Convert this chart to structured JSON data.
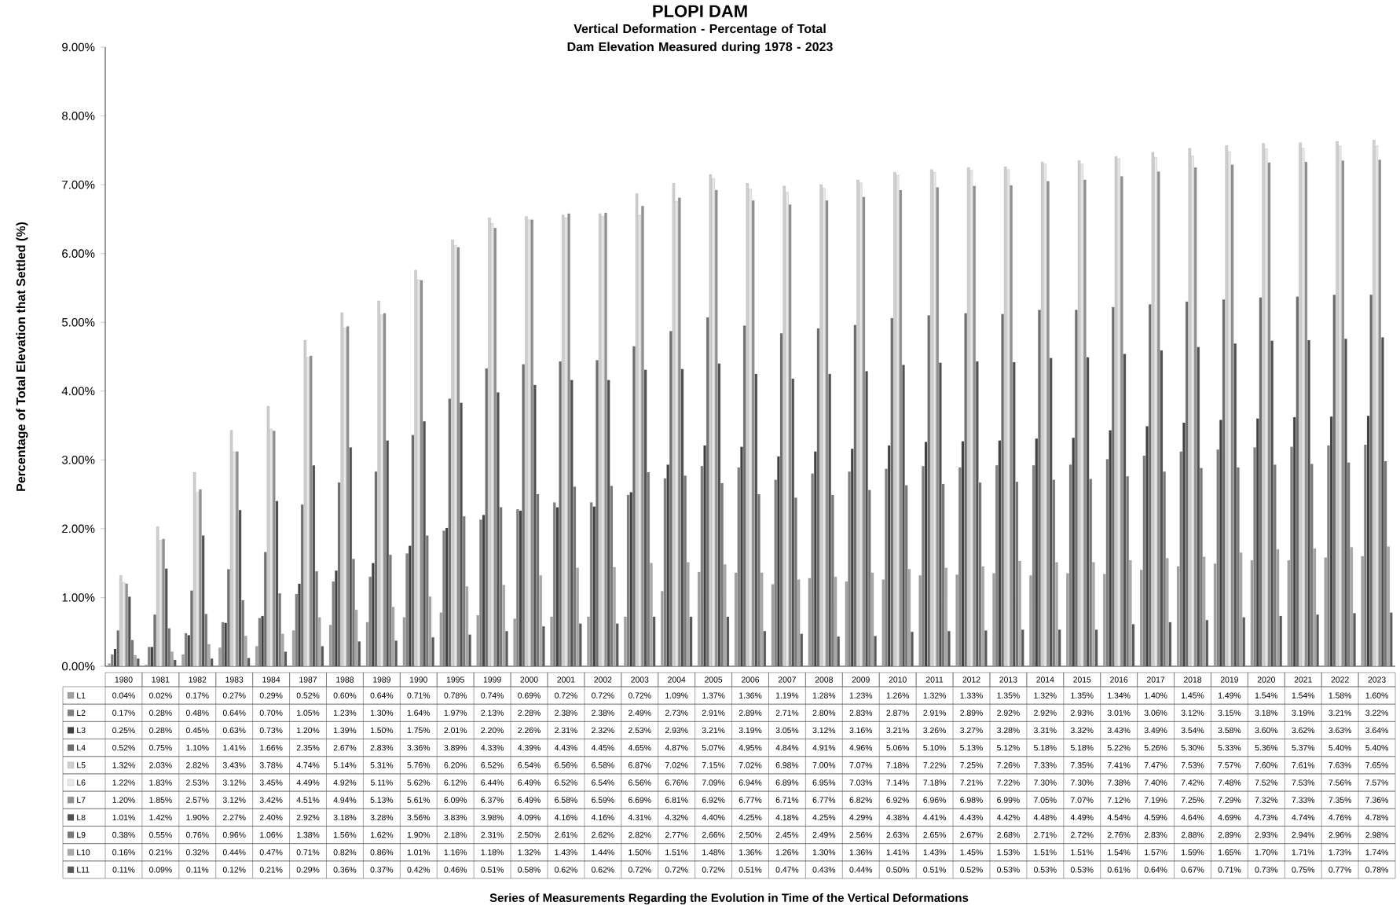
{
  "chart_data": {
    "type": "bar",
    "title": "PLOPI DAM",
    "subtitle": "Vertical Deformation - Percentage of Total Dam Elevation Measured during 1978 - 2023",
    "annotations": [
      "Series of Measurements Regarding the Evolution in Time of the Vertical Deformations"
    ],
    "ylabel": "Percentage of Total Elevation that Settled (%)",
    "categories": [
      "1980",
      "1981",
      "1982",
      "1983",
      "1984",
      "1987",
      "1988",
      "1989",
      "1990",
      "1995",
      "1999",
      "2000",
      "2001",
      "2002",
      "2003",
      "2004",
      "2005",
      "2006",
      "2007",
      "2008",
      "2009",
      "2010",
      "2011",
      "2012",
      "2013",
      "2014",
      "2015",
      "2016",
      "2017",
      "2018",
      "2019",
      "2020",
      "2021",
      "2022",
      "2023"
    ],
    "ylim": [
      0,
      9
    ],
    "yticks": [
      {
        "value": 0,
        "label": "0.00%"
      },
      {
        "value": 1,
        "label": "1.00%"
      },
      {
        "value": 2,
        "label": "2.00%"
      },
      {
        "value": 3,
        "label": "3.00%"
      },
      {
        "value": 4,
        "label": "4.00%"
      },
      {
        "value": 5,
        "label": "5.00%"
      },
      {
        "value": 6,
        "label": "6.00%"
      },
      {
        "value": 7,
        "label": "7.00%"
      },
      {
        "value": 8,
        "label": "8.00%"
      },
      {
        "value": 9,
        "label": "9.00%"
      }
    ],
    "legend": "bottom",
    "series": [
      {
        "name": "L1",
        "color": "#a0a0a0",
        "values": [
          0.04,
          0.02,
          0.17,
          0.27,
          0.29,
          0.52,
          0.6,
          0.64,
          0.71,
          0.78,
          0.74,
          0.69,
          0.72,
          0.72,
          0.72,
          1.09,
          1.37,
          1.36,
          1.19,
          1.28,
          1.23,
          1.26,
          1.32,
          1.33,
          1.35,
          1.32,
          1.35,
          1.34,
          1.4,
          1.45,
          1.49,
          1.54,
          1.54,
          1.58,
          1.6
        ],
        "value_labels": [
          "0.04%",
          "0.02%",
          "0.17%",
          "0.27%",
          "0.29%",
          "0.52%",
          "0.60%",
          "0.64%",
          "0.71%",
          "0.78%",
          "0.74%",
          "0.69%",
          "0.72%",
          "0.72%",
          "0.72%",
          "1.09%",
          "1.37%",
          "1.36%",
          "1.19%",
          "1.28%",
          "1.23%",
          "1.26%",
          "1.32%",
          "1.33%",
          "1.35%",
          "1.32%",
          "1.35%",
          "1.34%",
          "1.40%",
          "1.45%",
          "1.49%",
          "1.54%",
          "1.54%",
          "1.58%",
          "1.60%"
        ]
      },
      {
        "name": "L2",
        "color": "#808080",
        "values": [
          0.17,
          0.28,
          0.48,
          0.64,
          0.7,
          1.05,
          1.23,
          1.3,
          1.64,
          1.97,
          2.13,
          2.28,
          2.38,
          2.38,
          2.49,
          2.73,
          2.91,
          2.89,
          2.71,
          2.8,
          2.83,
          2.87,
          2.91,
          2.89,
          2.92,
          2.92,
          2.93,
          3.01,
          3.06,
          3.12,
          3.15,
          3.18,
          3.19,
          3.21,
          3.22
        ],
        "value_labels": [
          "0.17%",
          "0.28%",
          "0.48%",
          "0.64%",
          "0.70%",
          "1.05%",
          "1.23%",
          "1.30%",
          "1.64%",
          "1.97%",
          "2.13%",
          "2.28%",
          "2.38%",
          "2.38%",
          "2.49%",
          "2.73%",
          "2.91%",
          "2.89%",
          "2.71%",
          "2.80%",
          "2.83%",
          "2.87%",
          "2.91%",
          "2.89%",
          "2.92%",
          "2.92%",
          "2.93%",
          "3.01%",
          "3.06%",
          "3.12%",
          "3.15%",
          "3.18%",
          "3.19%",
          "3.21%",
          "3.22%"
        ]
      },
      {
        "name": "L3",
        "color": "#404040",
        "values": [
          0.25,
          0.28,
          0.45,
          0.63,
          0.73,
          1.2,
          1.39,
          1.5,
          1.75,
          2.01,
          2.2,
          2.26,
          2.31,
          2.32,
          2.53,
          2.93,
          3.21,
          3.19,
          3.05,
          3.12,
          3.16,
          3.21,
          3.26,
          3.27,
          3.28,
          3.31,
          3.32,
          3.43,
          3.49,
          3.54,
          3.58,
          3.6,
          3.62,
          3.63,
          3.64
        ],
        "value_labels": [
          "0.25%",
          "0.28%",
          "0.45%",
          "0.63%",
          "0.73%",
          "1.20%",
          "1.39%",
          "1.50%",
          "1.75%",
          "2.01%",
          "2.20%",
          "2.26%",
          "2.31%",
          "2.32%",
          "2.53%",
          "2.93%",
          "3.21%",
          "3.19%",
          "3.05%",
          "3.12%",
          "3.16%",
          "3.21%",
          "3.26%",
          "3.27%",
          "3.28%",
          "3.31%",
          "3.32%",
          "3.43%",
          "3.49%",
          "3.54%",
          "3.58%",
          "3.60%",
          "3.62%",
          "3.63%",
          "3.64%"
        ]
      },
      {
        "name": "L4",
        "color": "#6e6e6e",
        "values": [
          0.52,
          0.75,
          1.1,
          1.41,
          1.66,
          2.35,
          2.67,
          2.83,
          3.36,
          3.89,
          4.33,
          4.39,
          4.43,
          4.45,
          4.65,
          4.87,
          5.07,
          4.95,
          4.84,
          4.91,
          4.96,
          5.06,
          5.1,
          5.13,
          5.12,
          5.18,
          5.18,
          5.22,
          5.26,
          5.3,
          5.33,
          5.36,
          5.37,
          5.4,
          5.4
        ],
        "value_labels": [
          "0.52%",
          "0.75%",
          "1.10%",
          "1.41%",
          "1.66%",
          "2.35%",
          "2.67%",
          "2.83%",
          "3.36%",
          "3.89%",
          "4.33%",
          "4.39%",
          "4.43%",
          "4.45%",
          "4.65%",
          "4.87%",
          "5.07%",
          "4.95%",
          "4.84%",
          "4.91%",
          "4.96%",
          "5.06%",
          "5.10%",
          "5.13%",
          "5.12%",
          "5.18%",
          "5.18%",
          "5.22%",
          "5.26%",
          "5.30%",
          "5.33%",
          "5.36%",
          "5.37%",
          "5.40%",
          "5.40%"
        ]
      },
      {
        "name": "L5",
        "color": "#cfcfcf",
        "values": [
          1.32,
          2.03,
          2.82,
          3.43,
          3.78,
          4.74,
          5.14,
          5.31,
          5.76,
          6.2,
          6.52,
          6.54,
          6.56,
          6.58,
          6.87,
          7.02,
          7.15,
          7.02,
          6.98,
          7.0,
          7.07,
          7.18,
          7.22,
          7.25,
          7.26,
          7.33,
          7.35,
          7.41,
          7.47,
          7.53,
          7.57,
          7.6,
          7.61,
          7.63,
          7.65
        ],
        "value_labels": [
          "1.32%",
          "2.03%",
          "2.82%",
          "3.43%",
          "3.78%",
          "4.74%",
          "5.14%",
          "5.31%",
          "5.76%",
          "6.20%",
          "6.52%",
          "6.54%",
          "6.56%",
          "6.58%",
          "6.87%",
          "7.02%",
          "7.15%",
          "7.02%",
          "6.98%",
          "7.00%",
          "7.07%",
          "7.18%",
          "7.22%",
          "7.25%",
          "7.26%",
          "7.33%",
          "7.35%",
          "7.41%",
          "7.47%",
          "7.53%",
          "7.57%",
          "7.60%",
          "7.61%",
          "7.63%",
          "7.65%"
        ]
      },
      {
        "name": "L6",
        "color": "#e8e8e8",
        "values": [
          1.22,
          1.83,
          2.53,
          3.12,
          3.45,
          4.49,
          4.92,
          5.11,
          5.62,
          6.12,
          6.44,
          6.49,
          6.52,
          6.54,
          6.56,
          6.76,
          7.09,
          6.94,
          6.89,
          6.95,
          7.03,
          7.14,
          7.18,
          7.21,
          7.22,
          7.3,
          7.3,
          7.38,
          7.4,
          7.42,
          7.48,
          7.52,
          7.53,
          7.56,
          7.57
        ],
        "value_labels": [
          "1.22%",
          "1.83%",
          "2.53%",
          "3.12%",
          "3.45%",
          "4.49%",
          "4.92%",
          "5.11%",
          "5.62%",
          "6.12%",
          "6.44%",
          "6.49%",
          "6.52%",
          "6.54%",
          "6.56%",
          "6.76%",
          "7.09%",
          "6.94%",
          "6.89%",
          "6.95%",
          "7.03%",
          "7.14%",
          "7.18%",
          "7.21%",
          "7.22%",
          "7.30%",
          "7.30%",
          "7.38%",
          "7.40%",
          "7.42%",
          "7.48%",
          "7.52%",
          "7.53%",
          "7.56%",
          "7.57%"
        ]
      },
      {
        "name": "L7",
        "color": "#909090",
        "values": [
          1.2,
          1.85,
          2.57,
          3.12,
          3.42,
          4.51,
          4.94,
          5.13,
          5.61,
          6.09,
          6.37,
          6.49,
          6.58,
          6.59,
          6.69,
          6.81,
          6.92,
          6.77,
          6.71,
          6.77,
          6.82,
          6.92,
          6.96,
          6.98,
          6.99,
          7.05,
          7.07,
          7.12,
          7.19,
          7.25,
          7.29,
          7.32,
          7.33,
          7.35,
          7.36
        ],
        "value_labels": [
          "1.20%",
          "1.85%",
          "2.57%",
          "3.12%",
          "3.42%",
          "4.51%",
          "4.94%",
          "5.13%",
          "5.61%",
          "6.09%",
          "6.37%",
          "6.49%",
          "6.58%",
          "6.59%",
          "6.69%",
          "6.81%",
          "6.92%",
          "6.77%",
          "6.71%",
          "6.77%",
          "6.82%",
          "6.92%",
          "6.96%",
          "6.98%",
          "6.99%",
          "7.05%",
          "7.07%",
          "7.12%",
          "7.19%",
          "7.25%",
          "7.29%",
          "7.32%",
          "7.33%",
          "7.35%",
          "7.36%"
        ]
      },
      {
        "name": "L8",
        "color": "#505050",
        "values": [
          1.01,
          1.42,
          1.9,
          2.27,
          2.4,
          2.92,
          3.18,
          3.28,
          3.56,
          3.83,
          3.98,
          4.09,
          4.16,
          4.16,
          4.31,
          4.32,
          4.4,
          4.25,
          4.18,
          4.25,
          4.29,
          4.38,
          4.41,
          4.43,
          4.42,
          4.48,
          4.49,
          4.54,
          4.59,
          4.64,
          4.69,
          4.73,
          4.74,
          4.76,
          4.78
        ],
        "value_labels": [
          "1.01%",
          "1.42%",
          "1.90%",
          "2.27%",
          "2.40%",
          "2.92%",
          "3.18%",
          "3.28%",
          "3.56%",
          "3.83%",
          "3.98%",
          "4.09%",
          "4.16%",
          "4.16%",
          "4.31%",
          "4.32%",
          "4.40%",
          "4.25%",
          "4.18%",
          "4.25%",
          "4.29%",
          "4.38%",
          "4.41%",
          "4.43%",
          "4.42%",
          "4.48%",
          "4.49%",
          "4.54%",
          "4.59%",
          "4.64%",
          "4.69%",
          "4.73%",
          "4.74%",
          "4.76%",
          "4.78%"
        ]
      },
      {
        "name": "L9",
        "color": "#787878",
        "values": [
          0.38,
          0.55,
          0.76,
          0.96,
          1.06,
          1.38,
          1.56,
          1.62,
          1.9,
          2.18,
          2.31,
          2.5,
          2.61,
          2.62,
          2.82,
          2.77,
          2.66,
          2.5,
          2.45,
          2.49,
          2.56,
          2.63,
          2.65,
          2.67,
          2.68,
          2.71,
          2.72,
          2.76,
          2.83,
          2.88,
          2.89,
          2.93,
          2.94,
          2.96,
          2.98
        ],
        "value_labels": [
          "0.38%",
          "0.55%",
          "0.76%",
          "0.96%",
          "1.06%",
          "1.38%",
          "1.56%",
          "1.62%",
          "1.90%",
          "2.18%",
          "2.31%",
          "2.50%",
          "2.61%",
          "2.62%",
          "2.82%",
          "2.77%",
          "2.66%",
          "2.50%",
          "2.45%",
          "2.49%",
          "2.56%",
          "2.63%",
          "2.65%",
          "2.67%",
          "2.68%",
          "2.71%",
          "2.72%",
          "2.76%",
          "2.83%",
          "2.88%",
          "2.89%",
          "2.93%",
          "2.94%",
          "2.96%",
          "2.98%"
        ]
      },
      {
        "name": "L10",
        "color": "#a8a8a8",
        "values": [
          0.16,
          0.21,
          0.32,
          0.44,
          0.47,
          0.71,
          0.82,
          0.86,
          1.01,
          1.16,
          1.18,
          1.32,
          1.43,
          1.44,
          1.5,
          1.51,
          1.48,
          1.36,
          1.26,
          1.3,
          1.36,
          1.41,
          1.43,
          1.45,
          1.53,
          1.51,
          1.51,
          1.54,
          1.57,
          1.59,
          1.65,
          1.7,
          1.71,
          1.73,
          1.74
        ],
        "value_labels": [
          "0.16%",
          "0.21%",
          "0.32%",
          "0.44%",
          "0.47%",
          "0.71%",
          "0.82%",
          "0.86%",
          "1.01%",
          "1.16%",
          "1.18%",
          "1.32%",
          "1.43%",
          "1.44%",
          "1.50%",
          "1.51%",
          "1.48%",
          "1.36%",
          "1.26%",
          "1.30%",
          "1.36%",
          "1.41%",
          "1.43%",
          "1.45%",
          "1.53%",
          "1.51%",
          "1.51%",
          "1.54%",
          "1.57%",
          "1.59%",
          "1.65%",
          "1.70%",
          "1.71%",
          "1.73%",
          "1.74%"
        ]
      },
      {
        "name": "L11",
        "color": "#595959",
        "values": [
          0.11,
          0.09,
          0.11,
          0.12,
          0.21,
          0.29,
          0.36,
          0.37,
          0.42,
          0.46,
          0.51,
          0.58,
          0.62,
          0.62,
          0.72,
          0.72,
          0.72,
          0.51,
          0.47,
          0.43,
          0.44,
          0.5,
          0.51,
          0.52,
          0.53,
          0.53,
          0.53,
          0.61,
          0.64,
          0.67,
          0.71,
          0.73,
          0.75,
          0.77,
          0.78
        ],
        "value_labels": [
          "0.11%",
          "0.09%",
          "0.11%",
          "0.12%",
          "0.21%",
          "0.29%",
          "0.36%",
          "0.37%",
          "0.42%",
          "0.46%",
          "0.51%",
          "0.58%",
          "0.62%",
          "0.62%",
          "0.72%",
          "0.72%",
          "0.72%",
          "0.51%",
          "0.47%",
          "0.43%",
          "0.44%",
          "0.50%",
          "0.51%",
          "0.52%",
          "0.53%",
          "0.53%",
          "0.53%",
          "0.61%",
          "0.64%",
          "0.67%",
          "0.71%",
          "0.73%",
          "0.75%",
          "0.77%",
          "0.78%"
        ]
      }
    ]
  }
}
